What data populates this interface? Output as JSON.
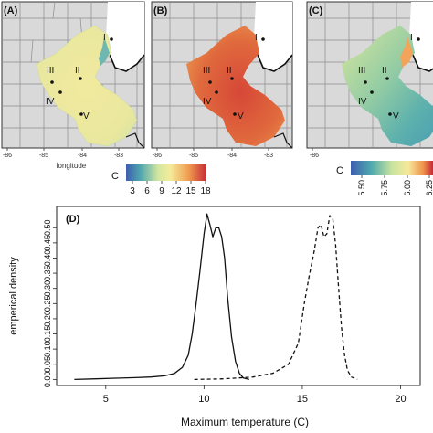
{
  "maps": {
    "panels": [
      {
        "tag": "(A)",
        "sites": [
          "I",
          "II",
          "III",
          "IV",
          "V"
        ]
      },
      {
        "tag": "(B)",
        "sites": [
          "I",
          "II",
          "III",
          "IV",
          "V"
        ]
      },
      {
        "tag": "(C)",
        "sites": [
          "I",
          "II",
          "III",
          "IV",
          "V"
        ]
      }
    ],
    "x_ticks": [
      "-86",
      "-85",
      "-84",
      "-83"
    ],
    "xlabel": "longitude",
    "legend_left": {
      "unit": "C",
      "ticks": [
        "3",
        "6",
        "9",
        "12",
        "15",
        "18"
      ]
    },
    "legend_right": {
      "unit": "C",
      "ticks": [
        "5.50",
        "5.75",
        "6.00",
        "6.25"
      ]
    },
    "colors": {
      "low": "#3d5eb0",
      "mid": "#f4eb9a",
      "high": "#c62a36",
      "water": "#ffffff",
      "background": "#d9d9d9"
    }
  },
  "chart_data": {
    "type": "line",
    "panel_tag": "(D)",
    "xlabel": "Maximum temperature (C)",
    "ylabel": "emperical density",
    "xlim": [
      2.5,
      21
    ],
    "ylim": [
      -0.02,
      0.57
    ],
    "x_ticks": [
      5,
      10,
      15,
      20
    ],
    "y_ticks": [
      0.0,
      0.05,
      0.1,
      0.15,
      0.2,
      0.25,
      0.3,
      0.35,
      0.4,
      0.45,
      0.5
    ],
    "series": [
      {
        "style": "solid",
        "x": [
          3.4,
          4.5,
          5.5,
          6.5,
          7.3,
          8.0,
          8.5,
          8.9,
          9.2,
          9.4,
          9.6,
          9.8,
          10.0,
          10.15,
          10.3,
          10.45,
          10.6,
          10.75,
          10.9,
          11.05,
          11.2,
          11.4,
          11.6,
          11.8,
          12.0,
          12.3
        ],
        "y": [
          0.0,
          0.002,
          0.004,
          0.006,
          0.008,
          0.012,
          0.02,
          0.04,
          0.08,
          0.15,
          0.25,
          0.36,
          0.48,
          0.545,
          0.51,
          0.47,
          0.5,
          0.5,
          0.47,
          0.4,
          0.27,
          0.14,
          0.06,
          0.02,
          0.005,
          0.0
        ]
      },
      {
        "style": "dashed",
        "x": [
          9.5,
          11.0,
          12.5,
          13.5,
          14.3,
          14.8,
          15.1,
          15.35,
          15.6,
          15.8,
          15.95,
          16.1,
          16.25,
          16.4,
          16.55,
          16.7,
          16.85,
          17.0,
          17.15,
          17.3,
          17.5,
          17.8
        ],
        "y": [
          0.0,
          0.002,
          0.008,
          0.02,
          0.05,
          0.12,
          0.25,
          0.34,
          0.42,
          0.5,
          0.51,
          0.47,
          0.48,
          0.54,
          0.53,
          0.44,
          0.3,
          0.17,
          0.08,
          0.03,
          0.008,
          0.0
        ]
      }
    ]
  }
}
